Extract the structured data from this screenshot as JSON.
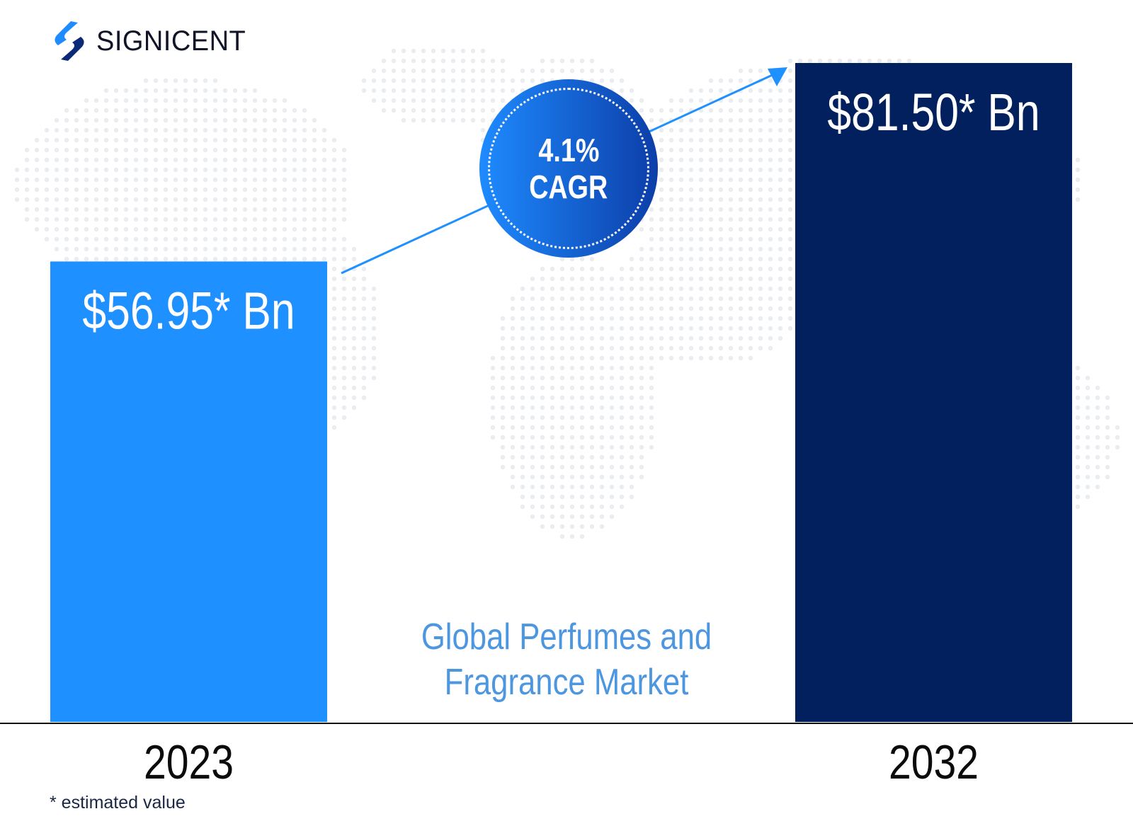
{
  "brand": {
    "name": "SIGNICENT"
  },
  "chart_data": {
    "type": "bar",
    "categories": [
      "2023",
      "2032"
    ],
    "values": [
      56.95,
      81.5
    ],
    "value_labels": [
      "$56.95* Bn",
      "$81.50* Bn"
    ],
    "bar_colors": [
      "#1e90ff",
      "#02205e"
    ],
    "ylim": [
      0,
      81.5
    ],
    "grid": false,
    "annotation": {
      "cagr_value": "4.1%",
      "cagr_label": "CAGR"
    },
    "market_title": "Global Perfumes and Fragrance Market"
  },
  "footnote": "* estimated value",
  "colors": {
    "arrow": "#1e90ff",
    "market_title": "#4d96e0"
  }
}
